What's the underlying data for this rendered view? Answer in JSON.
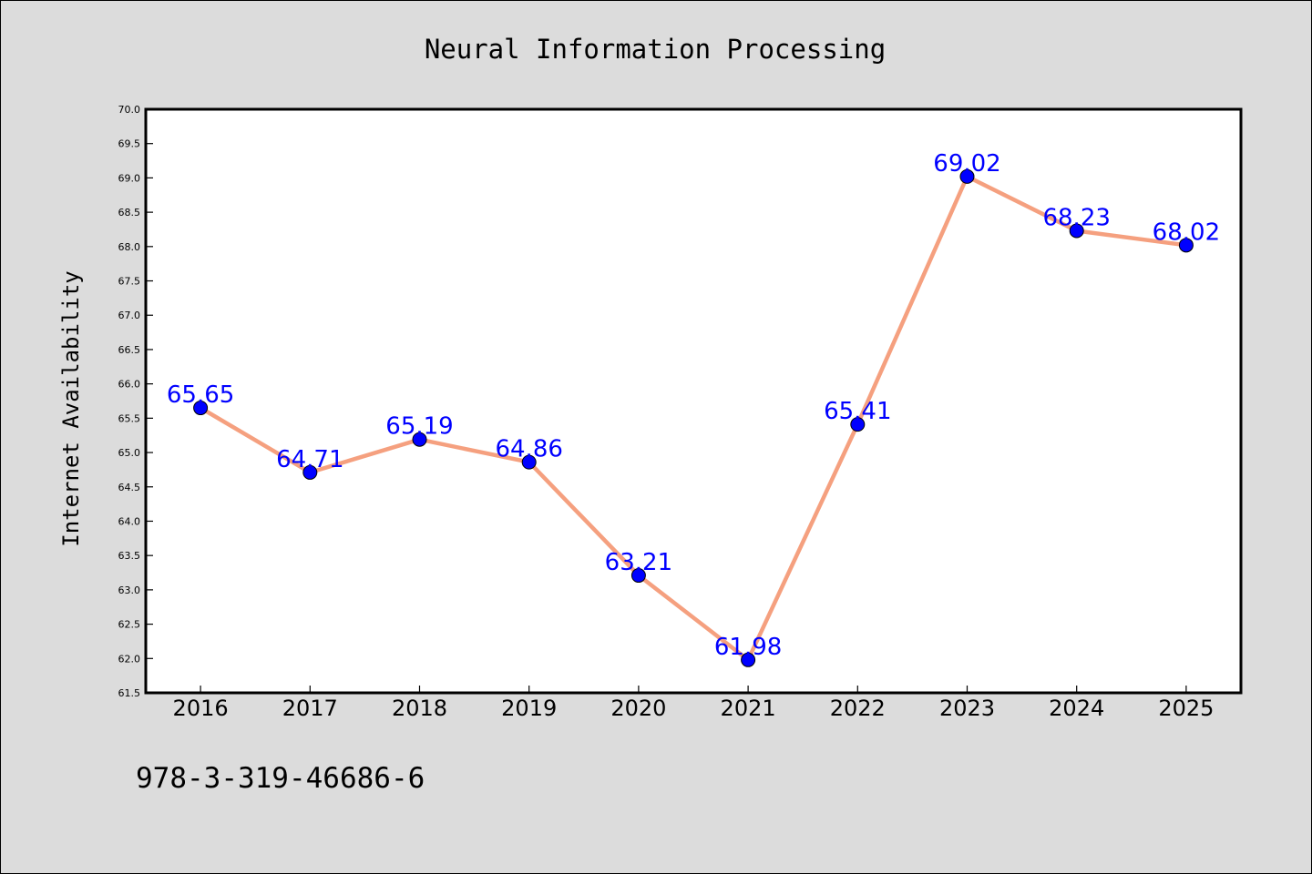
{
  "chart_data": {
    "type": "line",
    "title": "Neural Information Processing",
    "xlabel": "",
    "ylabel": "Internet Availability",
    "categories": [
      "2016",
      "2017",
      "2018",
      "2019",
      "2020",
      "2021",
      "2022",
      "2023",
      "2024",
      "2025"
    ],
    "series": [
      {
        "values": [
          65.65,
          64.71,
          65.19,
          64.86,
          63.21,
          61.98,
          65.41,
          69.02,
          68.23,
          68.02
        ],
        "data_labels": [
          "65.65",
          "64.71",
          "65.19",
          "64.86",
          "63.21",
          "61.98",
          "65.41",
          "69.02",
          "68.23",
          "68.02"
        ],
        "line_color": "#f5a07f",
        "marker_color": "#0000ff"
      }
    ],
    "ylim": [
      61.5,
      70.0
    ],
    "yticks": [
      "61.5",
      "62.0",
      "62.5",
      "63.0",
      "63.5",
      "64.0",
      "64.5",
      "65.0",
      "65.5",
      "66.0",
      "66.5",
      "67.0",
      "67.5",
      "68.0",
      "68.5",
      "69.0",
      "69.5",
      "70.0"
    ],
    "grid": false,
    "label_color": "#0000ff",
    "plot_background": "#ffffff"
  },
  "footer": {
    "isbn": "978-3-319-46686-6"
  },
  "colors": {
    "page_background": "#dcdcdc",
    "line": "#f5a07f",
    "marker": "#0000ff",
    "label": "#0000ff"
  }
}
